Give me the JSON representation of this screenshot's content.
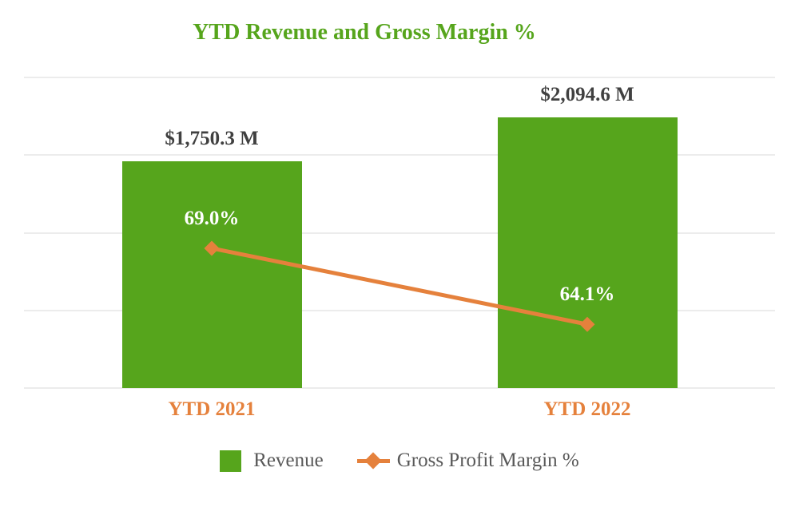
{
  "title": "YTD Revenue and Gross Margin %",
  "colors": {
    "green": "#56A51C",
    "orange": "#E5813C",
    "label_gray": "#404040",
    "legend_gray": "#595959",
    "gridline": "#ECECEC",
    "pct_label": "#FFFFFF"
  },
  "legend": [
    {
      "label": "Revenue",
      "marker": "green-square"
    },
    {
      "label": "Gross Profit Margin %",
      "marker": "orange-diamond-line"
    }
  ],
  "chart_data": {
    "type": "combo",
    "title": "YTD Revenue and Gross Margin %",
    "categories": [
      "YTD 2021",
      "YTD 2022"
    ],
    "series": [
      {
        "name": "Revenue",
        "render": "bar",
        "values": [
          1750.3,
          2094.6
        ],
        "labels": [
          "$1,750.3 M",
          "$2,094.6 M"
        ],
        "axis": "primary",
        "unit": "M USD"
      },
      {
        "name": "Gross Profit Margin %",
        "render": "line",
        "values": [
          69.0,
          64.1
        ],
        "labels": [
          "69.0%",
          "64.1%"
        ],
        "axis": "secondary",
        "unit": "%"
      }
    ],
    "primary_axis": {
      "min": 0,
      "max": 2400,
      "gridline_step": 600,
      "labels_visible": false
    },
    "secondary_axis": {
      "min": 60,
      "max": 80,
      "labels_visible": false
    },
    "grid": true,
    "legend_position": "bottom",
    "xlabel": "",
    "ylabel": ""
  }
}
